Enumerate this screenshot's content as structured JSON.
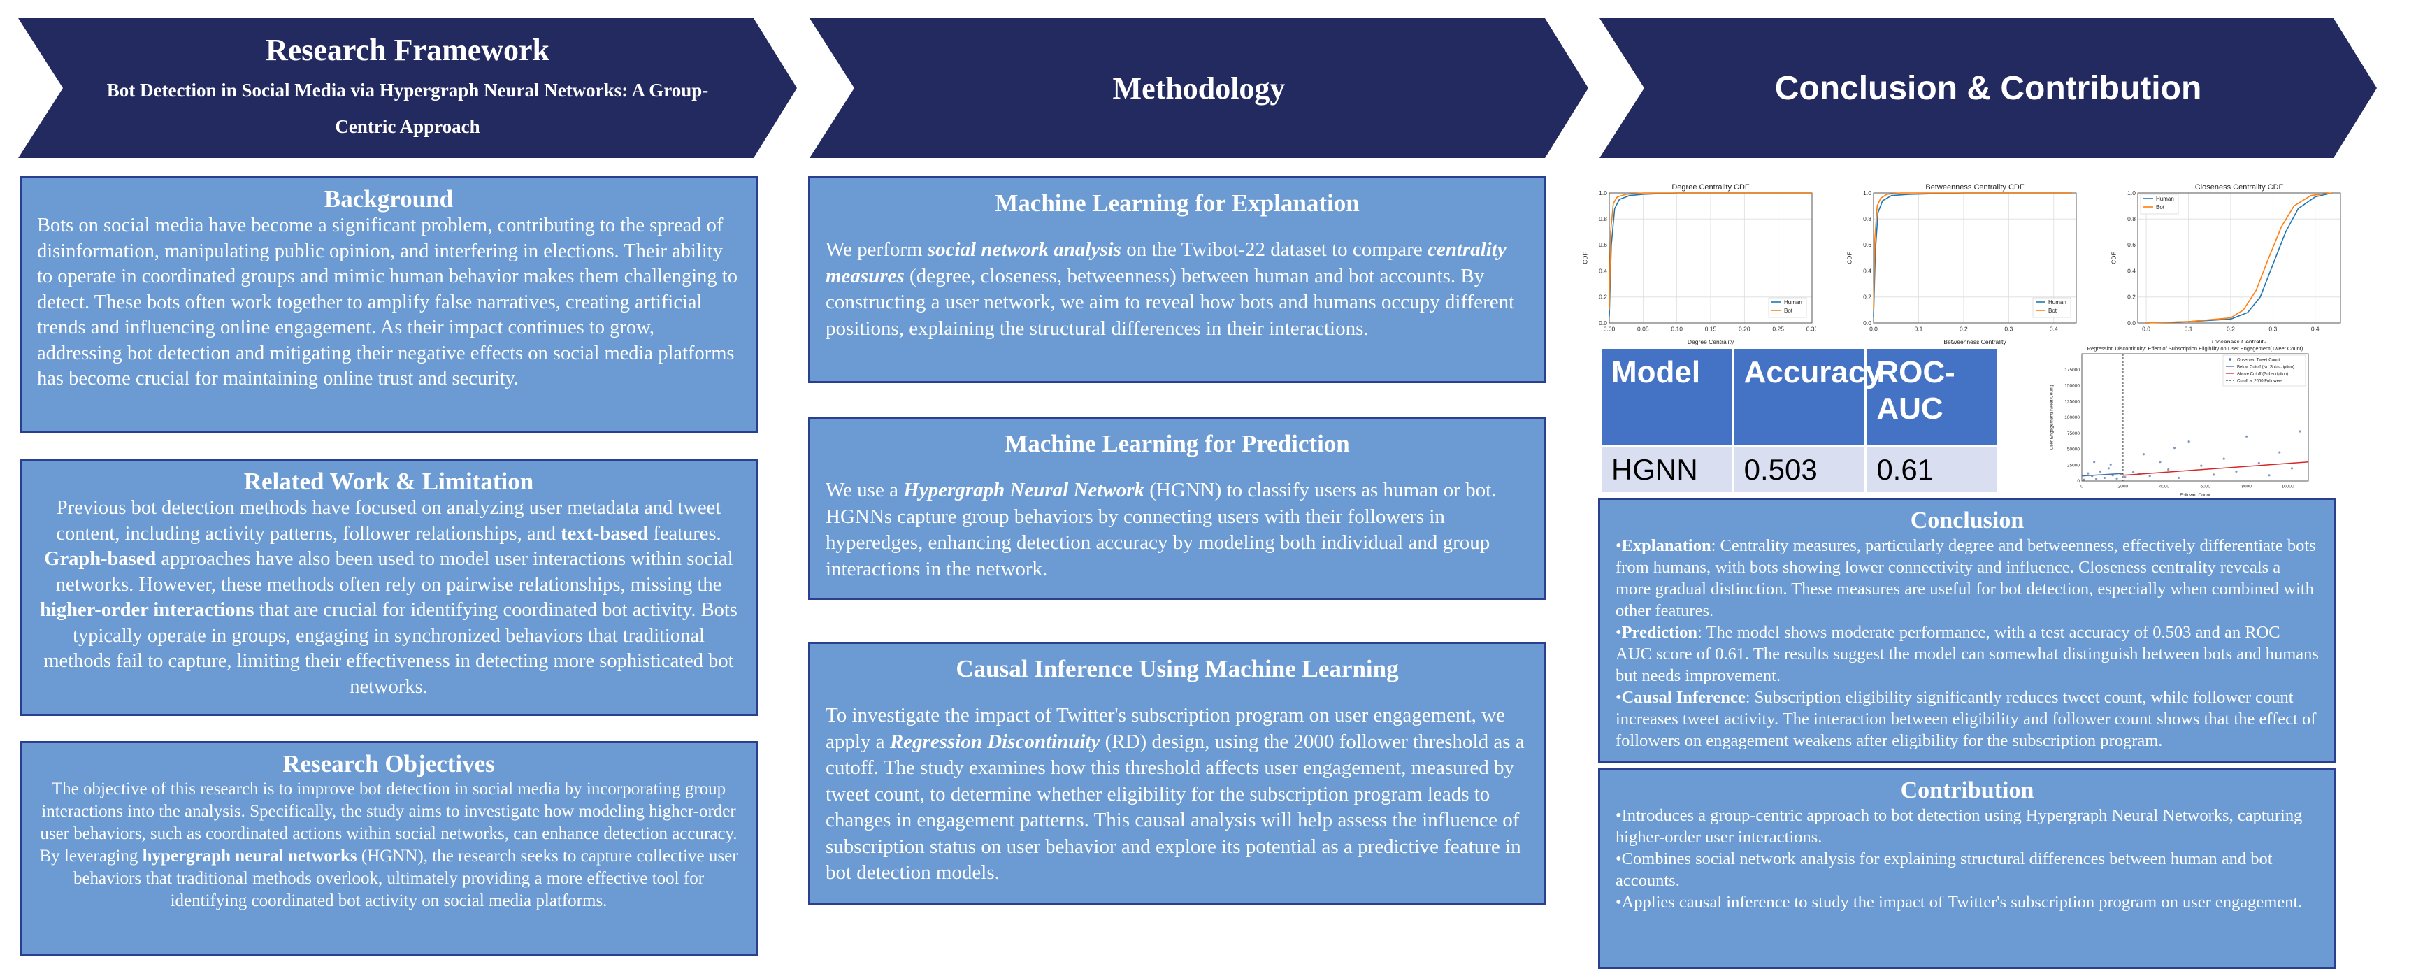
{
  "banners": {
    "research_framework": {
      "title": "Research Framework",
      "subtitle": "Bot Detection in Social Media via Hypergraph Neural Networks: A Group-Centric Approach"
    },
    "methodology": {
      "title": "Methodology"
    },
    "conclusion": {
      "title": "Conclusion & Contribution"
    }
  },
  "left": {
    "background": {
      "title": "Background",
      "text": "Bots on social media have become a significant problem, contributing to the spread of disinformation, manipulating public opinion, and interfering in elections. Their ability to operate in coordinated groups and mimic human behavior makes them challenging to detect. These bots often work together to amplify false narratives, creating artificial trends and influencing online engagement. As their impact continues to grow, addressing bot detection and mitigating their negative effects on social media platforms has become crucial for maintaining online trust and security."
    },
    "related": {
      "title": "Related Work & Limitation",
      "t1": "Previous bot detection methods have focused on analyzing user metadata and tweet content, including activity patterns, follower relationships, and ",
      "b1": "text-based",
      "t2": " features. ",
      "b2": "Graph-based",
      "t3": " approaches have also been used to model user interactions within social networks. However, these methods often rely on pairwise relationships, missing the ",
      "b3": "higher-order interactions",
      "t4": " that are crucial for identifying coordinated bot activity. Bots typically operate in groups, engaging in synchronized behaviors that traditional methods fail to capture, limiting their effectiveness in detecting more sophisticated bot networks."
    },
    "objectives": {
      "title": "Research Objectives",
      "t1": "The objective of this research is to improve bot detection in social media by incorporating group interactions into the analysis. Specifically, the study aims to investigate how modeling higher-order user behaviors, such as coordinated actions within social networks, can enhance detection accuracy. By leveraging ",
      "b1": "hypergraph neural networks",
      "t2": " (HGNN), the research seeks to capture collective user behaviors that traditional methods overlook, ultimately providing a more effective tool for identifying coordinated bot activity on social media platforms."
    }
  },
  "middle": {
    "explanation": {
      "title": "Machine Learning for Explanation",
      "t1": "We perform ",
      "b1": "social network analysis",
      "t2": " on the Twibot-22 dataset to compare ",
      "b2": "centrality measures",
      "t3": " (degree, closeness, betweenness) between human and bot accounts. By constructing a user network, we aim to reveal how bots and humans occupy different positions, explaining the structural differences in their interactions."
    },
    "prediction": {
      "title": "Machine Learning for Prediction",
      "t1": "We use a ",
      "b1": "Hypergraph Neural Network",
      "t2": " (HGNN) to classify users as human or bot. HGNNs capture group behaviors by connecting users with their followers in hyperedges, enhancing detection accuracy by modeling both individual and group interactions in the network."
    },
    "causal": {
      "title": "Causal Inference Using Machine Learning",
      "t1": "To investigate the impact of Twitter's subscription program on user engagement, we apply a ",
      "b1": "Regression Discontinuity",
      "t2": " (RD) design, using the 2000 follower threshold as a cutoff. The study examines how this threshold affects user engagement, measured by tweet count, to determine whether eligibility for the subscription program leads to changes in engagement patterns. This causal analysis will help assess the influence of subscription status on user behavior and explore its potential as a predictive feature in bot detection models."
    }
  },
  "right": {
    "results_table": {
      "headers": [
        "Model",
        "Accuracy",
        "ROC-AUC"
      ],
      "rows": [
        [
          "HGNN",
          "0.503",
          "0.61"
        ]
      ]
    },
    "conclusion": {
      "title": "Conclusion",
      "items": [
        {
          "label": "Explanation",
          "text": ": Centrality measures, particularly degree and betweenness, effectively differentiate bots from humans, with bots showing lower connectivity and influence. Closeness centrality reveals a more gradual distinction. These measures are useful for bot detection, especially when combined with other features."
        },
        {
          "label": "Prediction",
          "text": ": The model shows moderate performance, with a test accuracy of 0.503 and an ROC AUC score of 0.61. The results suggest the model can somewhat distinguish between bots and humans but needs improvement."
        },
        {
          "label": "Causal Inference",
          "text": ": Subscription eligibility significantly reduces tweet count, while follower count increases tweet activity. The interaction between eligibility and follower count shows that the effect of followers on engagement weakens after eligibility for the subscription program."
        }
      ]
    },
    "contribution": {
      "title": "Contribution",
      "items": [
        "Introduces a group-centric approach to bot detection using Hypergraph Neural Networks, capturing higher-order user interactions.",
        "Combines social network analysis for explaining structural differences between human and bot accounts.",
        "Applies causal inference to study the impact of Twitter's subscription program on user engagement."
      ]
    }
  },
  "chart_data": [
    {
      "type": "line",
      "title": "Degree Centrality CDF",
      "xlabel": "Degree Centrality",
      "ylabel": "CDF",
      "xlim": [
        0,
        0.3
      ],
      "ylim": [
        0,
        1
      ],
      "xticks": [
        0.0,
        0.05,
        0.1,
        0.15,
        0.2,
        0.25,
        0.3
      ],
      "xtick_labels": [
        "0.00",
        "0.05",
        "0.10",
        "0.15",
        "0.20",
        "0.25",
        "0.30"
      ],
      "yticks": [
        0,
        0.2,
        0.4,
        0.6,
        0.8,
        1.0
      ],
      "ytick_labels": [
        "0.0",
        "0.2",
        "0.4",
        "0.6",
        "0.8",
        "1.0"
      ],
      "legend": "bottom-right",
      "grid": true,
      "series": [
        {
          "name": "Human",
          "color": "#1f77b4",
          "x": [
            0,
            0.003,
            0.008,
            0.015,
            0.03,
            0.05,
            0.1,
            0.3
          ],
          "y": [
            0.05,
            0.6,
            0.88,
            0.95,
            0.98,
            0.99,
            1.0,
            1.0
          ]
        },
        {
          "name": "Bot",
          "color": "#ff7f0e",
          "x": [
            0,
            0.002,
            0.006,
            0.012,
            0.025,
            0.05,
            0.1,
            0.3
          ],
          "y": [
            0.1,
            0.7,
            0.92,
            0.97,
            0.99,
            1.0,
            1.0,
            1.0
          ]
        }
      ]
    },
    {
      "type": "line",
      "title": "Betweenness Centrality CDF",
      "xlabel": "Betweenness Centrality",
      "ylabel": "CDF",
      "xlim": [
        0,
        0.45
      ],
      "ylim": [
        0,
        1
      ],
      "xticks": [
        0.0,
        0.1,
        0.2,
        0.3,
        0.4
      ],
      "xtick_labels": [
        "0.0",
        "0.1",
        "0.2",
        "0.3",
        "0.4"
      ],
      "yticks": [
        0,
        0.2,
        0.4,
        0.6,
        0.8,
        1.0
      ],
      "ytick_labels": [
        "0.0",
        "0.2",
        "0.4",
        "0.6",
        "0.8",
        "1.0"
      ],
      "legend": "bottom-right",
      "grid": true,
      "series": [
        {
          "name": "Human",
          "color": "#1f77b4",
          "x": [
            0,
            0.004,
            0.01,
            0.02,
            0.04,
            0.08,
            0.2,
            0.44
          ],
          "y": [
            0.05,
            0.55,
            0.85,
            0.94,
            0.98,
            0.99,
            1.0,
            1.0
          ]
        },
        {
          "name": "Bot",
          "color": "#ff7f0e",
          "x": [
            0,
            0.003,
            0.008,
            0.016,
            0.03,
            0.06,
            0.2,
            0.44
          ],
          "y": [
            0.1,
            0.65,
            0.9,
            0.96,
            0.99,
            1.0,
            1.0,
            1.0
          ]
        }
      ]
    },
    {
      "type": "line",
      "title": "Closeness Centrality CDF",
      "xlabel": "Closeness Centrality",
      "ylabel": "CDF",
      "xlim": [
        -0.02,
        0.46
      ],
      "ylim": [
        0,
        1
      ],
      "xticks": [
        0.0,
        0.1,
        0.2,
        0.3,
        0.4
      ],
      "xtick_labels": [
        "0.0",
        "0.1",
        "0.2",
        "0.3",
        "0.4"
      ],
      "yticks": [
        0,
        0.2,
        0.4,
        0.6,
        0.8,
        1.0
      ],
      "ytick_labels": [
        "0.0",
        "0.2",
        "0.4",
        "0.6",
        "0.8",
        "1.0"
      ],
      "legend": "top-left",
      "grid": true,
      "series": [
        {
          "name": "Human",
          "color": "#1f77b4",
          "x": [
            0,
            0.1,
            0.2,
            0.24,
            0.27,
            0.3,
            0.33,
            0.36,
            0.4,
            0.44
          ],
          "y": [
            0,
            0.01,
            0.03,
            0.08,
            0.2,
            0.45,
            0.7,
            0.88,
            0.97,
            1.0
          ]
        },
        {
          "name": "Bot",
          "color": "#ff7f0e",
          "x": [
            0,
            0.1,
            0.2,
            0.23,
            0.26,
            0.29,
            0.32,
            0.35,
            0.39,
            0.44
          ],
          "y": [
            0,
            0.01,
            0.04,
            0.1,
            0.25,
            0.5,
            0.74,
            0.9,
            0.98,
            1.0
          ]
        }
      ]
    },
    {
      "type": "scatter",
      "title": "Regression Discontinuity: Effect of Subscription Eligibility on User Engagement(Tweet Count)",
      "xlabel": "Follower Count",
      "ylabel": "User Engagement(Tweet Count)",
      "xlim": [
        0,
        11000
      ],
      "ylim": [
        0,
        200000
      ],
      "xticks": [
        0,
        2000,
        4000,
        6000,
        8000,
        10000
      ],
      "xtick_labels": [
        "0",
        "2000",
        "4000",
        "6000",
        "8000",
        "10000"
      ],
      "yticks": [
        0,
        25000,
        50000,
        75000,
        100000,
        125000,
        150000,
        175000
      ],
      "ytick_labels": [
        "0",
        "25000",
        "50000",
        "75000",
        "100000",
        "125000",
        "150000",
        "175000"
      ],
      "legend": "top-right",
      "legend_items": [
        {
          "name": "Observed Tweet Count",
          "color": "#4a6fa5",
          "kind": "dot"
        },
        {
          "name": "Below Cutoff (No Subscription)",
          "color": "#4a6fa5",
          "kind": "line"
        },
        {
          "name": "Above Cutoff (Subscription)",
          "color": "#d62728",
          "kind": "line"
        },
        {
          "name": "Cutoff at 2000 Followers",
          "color": "#333333",
          "kind": "dash"
        }
      ],
      "cutoff_x": 2000,
      "points": [
        [
          100,
          2000
        ],
        [
          300,
          12000
        ],
        [
          500,
          8000
        ],
        [
          700,
          3000
        ],
        [
          900,
          15000
        ],
        [
          1100,
          5000
        ],
        [
          1300,
          20000
        ],
        [
          1500,
          9000
        ],
        [
          1700,
          4000
        ],
        [
          1900,
          11000
        ],
        [
          2100,
          6000
        ],
        [
          2500,
          14000
        ],
        [
          3000,
          42000
        ],
        [
          3300,
          8000
        ],
        [
          3800,
          30000
        ],
        [
          4200,
          18000
        ],
        [
          4700,
          5000
        ],
        [
          5200,
          62000
        ],
        [
          5800,
          24000
        ],
        [
          6400,
          10000
        ],
        [
          6900,
          35000
        ],
        [
          7500,
          15000
        ],
        [
          8000,
          70000
        ],
        [
          8600,
          28000
        ],
        [
          9100,
          9000
        ],
        [
          9600,
          45000
        ],
        [
          10200,
          20000
        ],
        [
          10600,
          78000
        ],
        [
          600,
          30000
        ],
        [
          1400,
          26000
        ],
        [
          2800,
          11000
        ],
        [
          4500,
          52000
        ]
      ],
      "fit_below": {
        "x": [
          0,
          2000
        ],
        "y": [
          8000,
          12000
        ]
      },
      "fit_above": {
        "x": [
          2000,
          11000
        ],
        "y": [
          9000,
          30000
        ]
      }
    }
  ]
}
